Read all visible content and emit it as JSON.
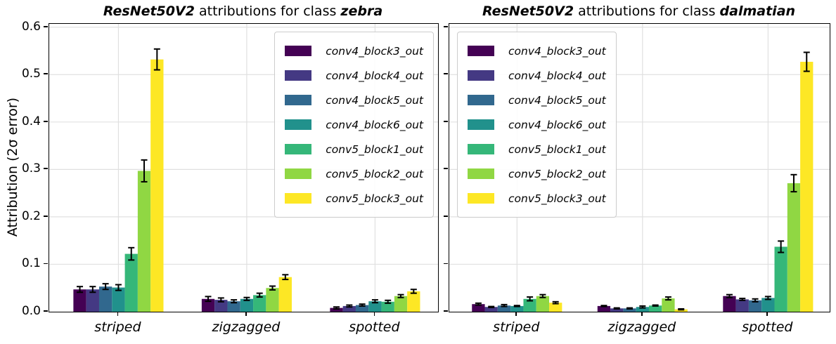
{
  "figure": {
    "ylabel": "Attribution (2σ error)",
    "charts": [
      {
        "title_model": "ResNet50V2",
        "title_middle": " attributions for class ",
        "title_class": "zebra"
      },
      {
        "title_model": "ResNet50V2",
        "title_middle": " attributions for class ",
        "title_class": "dalmatian"
      }
    ]
  },
  "chart_data": [
    {
      "type": "bar",
      "title": "ResNet50V2 attributions for class zebra",
      "categories": [
        "striped",
        "zigzagged",
        "spotted"
      ],
      "series": [
        {
          "name": "conv4_block3_out",
          "color": "#440154",
          "values": [
            0.047,
            0.027,
            0.008
          ],
          "errors": [
            0.006,
            0.005,
            0.002
          ]
        },
        {
          "name": "conv4_block4_out",
          "color": "#443983",
          "values": [
            0.047,
            0.025,
            0.012
          ],
          "errors": [
            0.006,
            0.004,
            0.002
          ]
        },
        {
          "name": "conv4_block5_out",
          "color": "#31688e",
          "values": [
            0.053,
            0.022,
            0.014
          ],
          "errors": [
            0.006,
            0.003,
            0.002
          ]
        },
        {
          "name": "conv4_block6_out",
          "color": "#21918c",
          "values": [
            0.051,
            0.027,
            0.022
          ],
          "errors": [
            0.006,
            0.003,
            0.003
          ]
        },
        {
          "name": "conv5_block1_out",
          "color": "#35b779",
          "values": [
            0.122,
            0.035,
            0.021
          ],
          "errors": [
            0.013,
            0.004,
            0.003
          ]
        },
        {
          "name": "conv5_block2_out",
          "color": "#90d743",
          "values": [
            0.297,
            0.05,
            0.033
          ],
          "errors": [
            0.023,
            0.004,
            0.003
          ]
        },
        {
          "name": "conv5_block3_out",
          "color": "#fde725",
          "values": [
            0.532,
            0.073,
            0.043
          ],
          "errors": [
            0.022,
            0.005,
            0.004
          ]
        }
      ],
      "xlabel": "",
      "ylabel": "Attribution (2σ error)",
      "ylim": [
        0,
        0.6
      ],
      "yticks": [
        0.0,
        0.1,
        0.2,
        0.3,
        0.4,
        0.5,
        0.6
      ],
      "ytick_labels": [
        "0.0",
        "0.1",
        "0.2",
        "0.3",
        "0.4",
        "0.5",
        "0.6"
      ],
      "grid": true,
      "legend_position": "upper-right",
      "error_bar_caps": true
    },
    {
      "type": "bar",
      "title": "ResNet50V2 attributions for class dalmatian",
      "categories": [
        "striped",
        "zigzagged",
        "spotted"
      ],
      "series": [
        {
          "name": "conv4_block3_out",
          "color": "#440154",
          "values": [
            0.016,
            0.012,
            0.033
          ],
          "errors": [
            0.002,
            0.001,
            0.003
          ]
        },
        {
          "name": "conv4_block4_out",
          "color": "#443983",
          "values": [
            0.01,
            0.007,
            0.026
          ],
          "errors": [
            0.001,
            0.001,
            0.002
          ]
        },
        {
          "name": "conv4_block5_out",
          "color": "#31688e",
          "values": [
            0.013,
            0.007,
            0.024
          ],
          "errors": [
            0.002,
            0.001,
            0.003
          ]
        },
        {
          "name": "conv4_block6_out",
          "color": "#21918c",
          "values": [
            0.012,
            0.01,
            0.029
          ],
          "errors": [
            0.001,
            0.002,
            0.003
          ]
        },
        {
          "name": "conv5_block1_out",
          "color": "#35b779",
          "values": [
            0.027,
            0.013,
            0.137
          ],
          "errors": [
            0.004,
            0.001,
            0.012
          ]
        },
        {
          "name": "conv5_block2_out",
          "color": "#90d743",
          "values": [
            0.033,
            0.028,
            0.271
          ],
          "errors": [
            0.003,
            0.003,
            0.018
          ]
        },
        {
          "name": "conv5_block3_out",
          "color": "#fde725",
          "values": [
            0.019,
            0.005,
            0.527
          ],
          "errors": [
            0.002,
            0.001,
            0.02
          ]
        }
      ],
      "xlabel": "",
      "ylabel": "",
      "ylim": [
        0,
        0.6
      ],
      "yticks": [
        0.0,
        0.1,
        0.2,
        0.3,
        0.4,
        0.5,
        0.6
      ],
      "ytick_labels": [],
      "grid": true,
      "legend_position": "upper-left",
      "error_bar_caps": true
    }
  ]
}
